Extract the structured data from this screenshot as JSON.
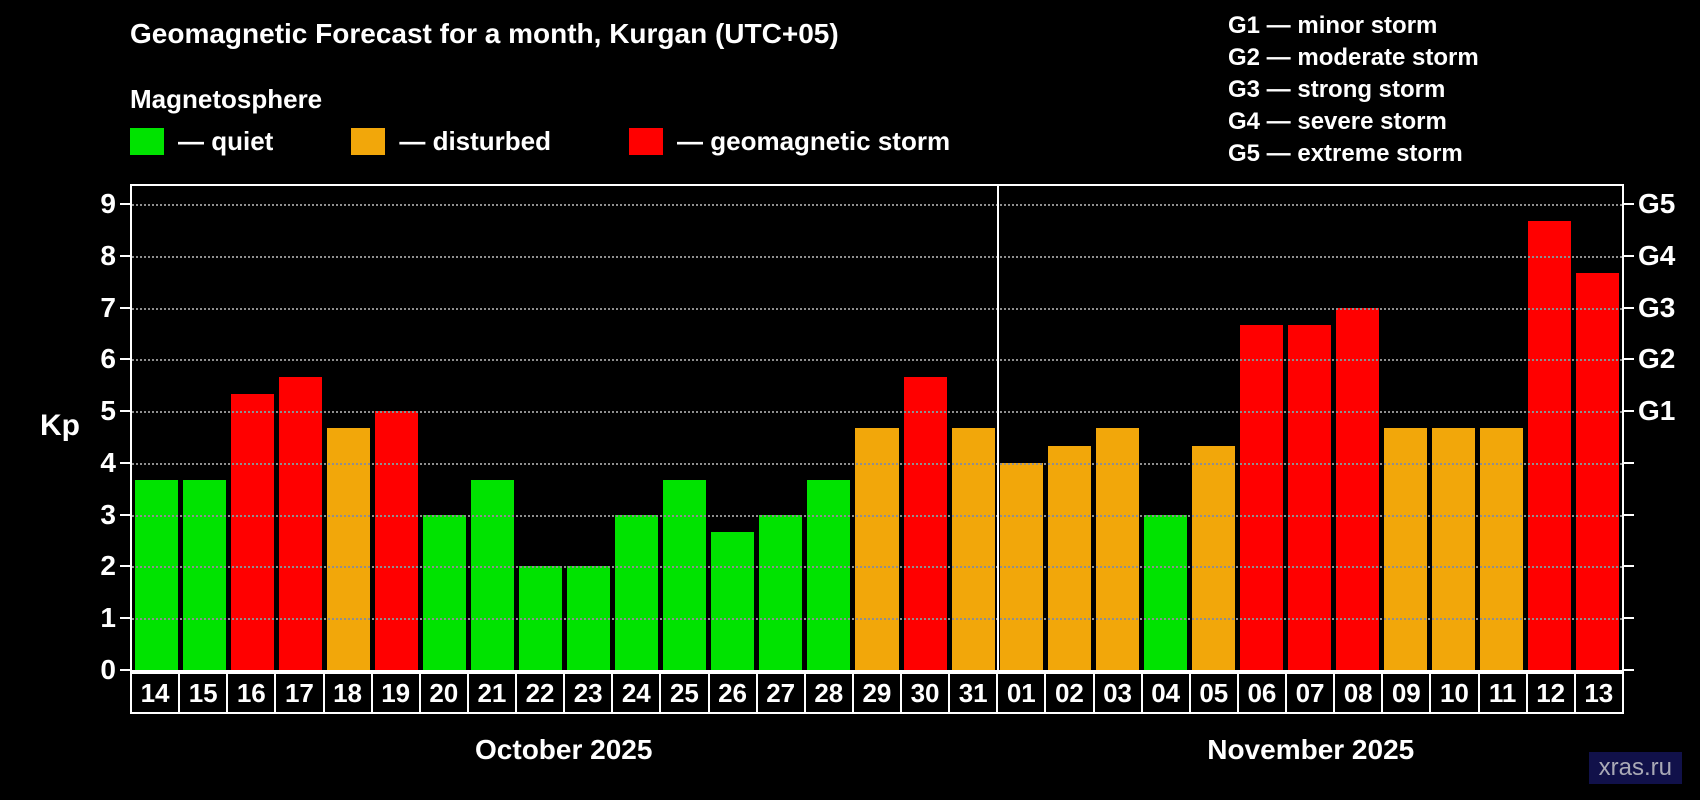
{
  "header": {
    "title": "Geomagnetic Forecast for a month, Kurgan (UTC+05)",
    "subtitle": "Magnetosphere"
  },
  "legend": {
    "items": [
      {
        "key": "quiet",
        "label": "— quiet",
        "color": "#00e300"
      },
      {
        "key": "disturbed",
        "label": "— disturbed",
        "color": "#f2a70a"
      },
      {
        "key": "storm",
        "label": "— geomagnetic storm",
        "color": "#ff0000"
      }
    ]
  },
  "storm_scale_legend": {
    "lines": [
      "G1 — minor storm",
      "G2 — moderate storm",
      "G3 — strong storm",
      "G4 — severe storm",
      "G5 — extreme storm"
    ]
  },
  "chart_data": {
    "type": "bar",
    "title": "Geomagnetic Forecast for a month, Kurgan (UTC+05)",
    "ylabel": "Kp",
    "ylim": [
      0,
      9.35
    ],
    "yticks": [
      0,
      1,
      2,
      3,
      4,
      5,
      6,
      7,
      8,
      9
    ],
    "grid": true,
    "right_axis_labels": [
      {
        "label": "G1",
        "value": 5
      },
      {
        "label": "G2",
        "value": 6
      },
      {
        "label": "G3",
        "value": 7
      },
      {
        "label": "G4",
        "value": 8
      },
      {
        "label": "G5",
        "value": 9
      }
    ],
    "months": [
      {
        "label": "October 2025",
        "days": 18
      },
      {
        "label": "November 2025",
        "days": 13
      }
    ],
    "categories": [
      "14",
      "15",
      "16",
      "17",
      "18",
      "19",
      "20",
      "21",
      "22",
      "23",
      "24",
      "25",
      "26",
      "27",
      "28",
      "29",
      "30",
      "31",
      "01",
      "02",
      "03",
      "04",
      "05",
      "06",
      "07",
      "08",
      "09",
      "10",
      "11",
      "12",
      "13"
    ],
    "values": [
      3.67,
      3.67,
      5.33,
      5.67,
      4.67,
      5.0,
      3.0,
      3.67,
      2.0,
      2.0,
      3.0,
      3.67,
      2.67,
      3.0,
      3.67,
      4.67,
      5.67,
      4.67,
      4.0,
      4.33,
      4.67,
      3.0,
      4.33,
      6.67,
      6.67,
      7.0,
      4.67,
      4.67,
      4.67,
      8.67,
      7.67
    ],
    "status": [
      "quiet",
      "quiet",
      "storm",
      "storm",
      "disturbed",
      "storm",
      "quiet",
      "quiet",
      "quiet",
      "quiet",
      "quiet",
      "quiet",
      "quiet",
      "quiet",
      "quiet",
      "disturbed",
      "storm",
      "disturbed",
      "disturbed",
      "disturbed",
      "disturbed",
      "quiet",
      "disturbed",
      "storm",
      "storm",
      "storm",
      "disturbed",
      "disturbed",
      "disturbed",
      "storm",
      "storm"
    ],
    "colors": {
      "quiet": "#00e300",
      "disturbed": "#f2a70a",
      "storm": "#ff0000"
    }
  },
  "watermark": "xras.ru"
}
